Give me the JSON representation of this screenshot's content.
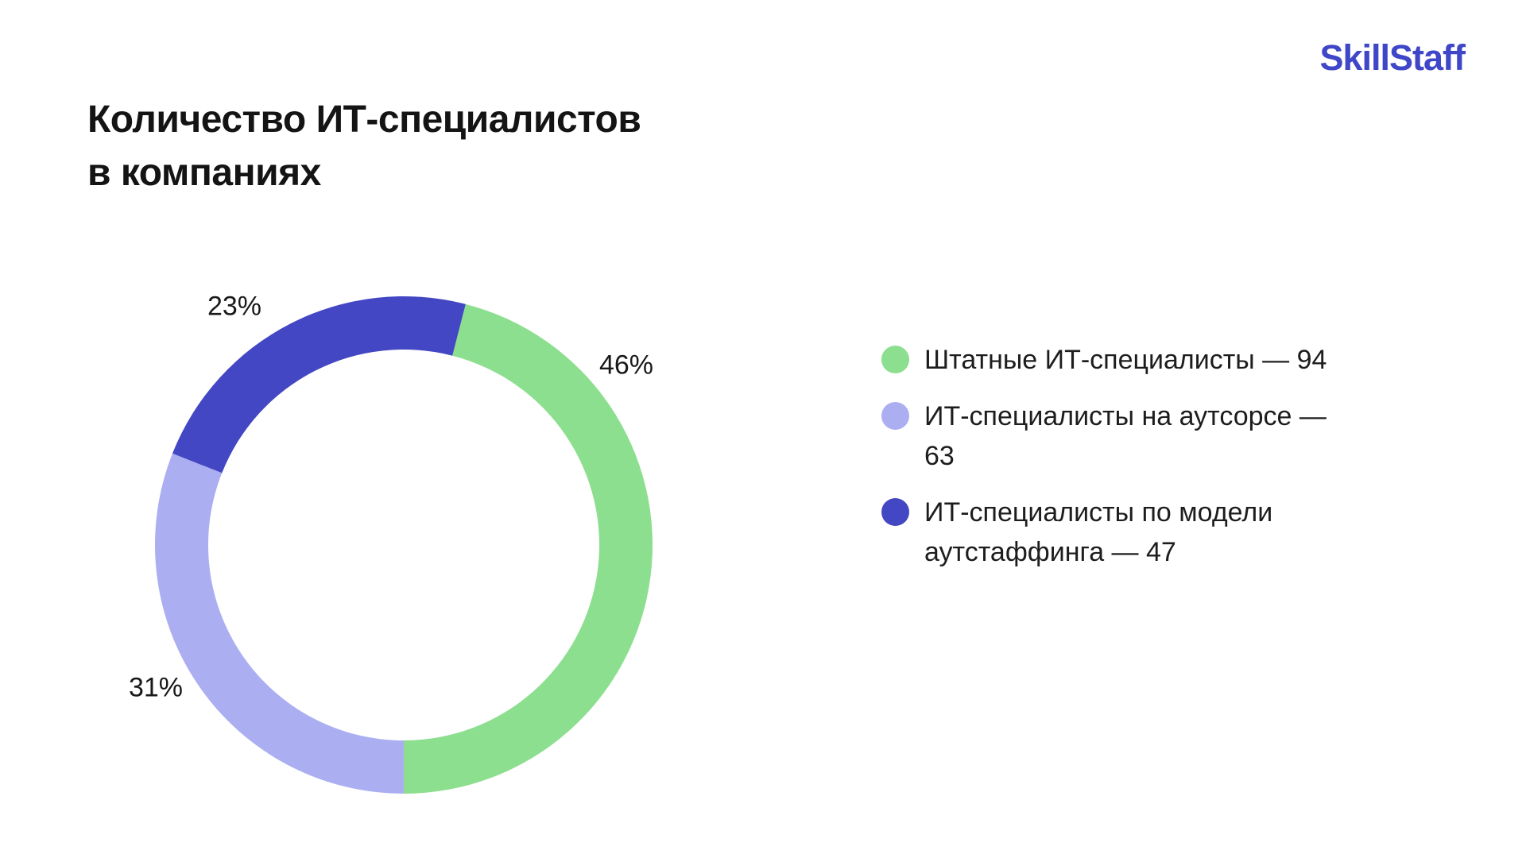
{
  "logo": {
    "text": "SkillStaff",
    "color": "#4046C8"
  },
  "title": {
    "line1": "Количество ИТ-специалистов",
    "line2": "в компаниях"
  },
  "chart_data": {
    "type": "pie",
    "donut": true,
    "title": "Количество ИТ-специалистов в компаниях",
    "start_angle_deg": 14.4,
    "direction": "clockwise",
    "inner_radius_ratio": 0.786,
    "legend_position": "right",
    "slices": [
      {
        "label": "Штатные ИТ-специалисты",
        "value": 94,
        "pct": 46,
        "pct_label": "46%",
        "color": "#8CDF8E"
      },
      {
        "label": "ИТ-специалисты на аутсорсе",
        "value": 63,
        "pct": 31,
        "pct_label": "31%",
        "color": "#ABAFF2"
      },
      {
        "label": "ИТ-специалисты по модели аутстаффинга",
        "value": 47,
        "pct": 23,
        "pct_label": "23%",
        "color": "#4347C3"
      }
    ]
  },
  "legend": {
    "items": [
      {
        "label": "Штатные ИТ-специалисты — 94",
        "color": "#8CDF8E"
      },
      {
        "label": "ИТ-специалисты на аутсорсе — 63",
        "color": "#ABAFF2"
      },
      {
        "label": "ИТ-специалисты по модели аутстаффинга — 47",
        "color": "#4347C3"
      }
    ]
  }
}
